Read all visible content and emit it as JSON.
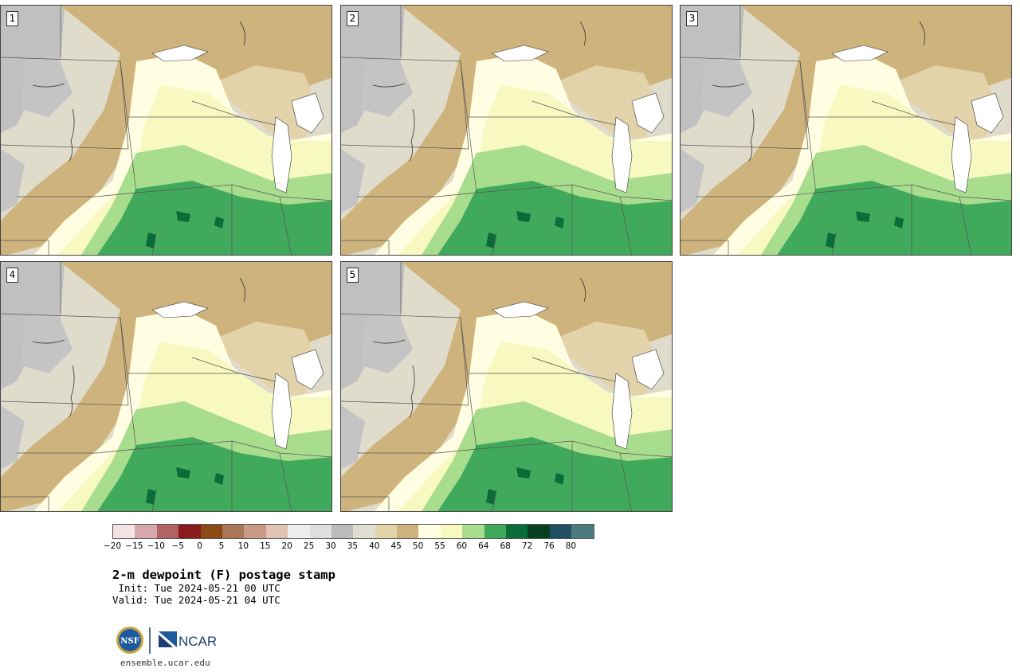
{
  "panels": [
    {
      "label": "1"
    },
    {
      "label": "2"
    },
    {
      "label": "3"
    },
    {
      "label": "4"
    },
    {
      "label": "5"
    }
  ],
  "colorbar": {
    "colors": [
      "#f2e4e4",
      "#d6a8ab",
      "#b26264",
      "#8b1a1f",
      "#8b4a16",
      "#aa7655",
      "#c99a83",
      "#e0c3b3",
      "#eeeeee",
      "#dedede",
      "#bbbbbb",
      "#e0ddd3",
      "#e2d3aa",
      "#cfb37c",
      "#fffde2",
      "#f7f9c0",
      "#a8dd8e",
      "#41a95c",
      "#0b6b39",
      "#063f22",
      "#1f5063",
      "#4b7b7c"
    ],
    "ticks": [
      "−20",
      "−15",
      "−10",
      "−5",
      "0",
      "5",
      "10",
      "15",
      "20",
      "25",
      "30",
      "35",
      "40",
      "45",
      "50",
      "55",
      "60",
      "64",
      "68",
      "72",
      "76",
      "80"
    ]
  },
  "title": "2-m dewpoint (F) postage stamp",
  "init": " Init: Tue 2024-05-21 00 UTC",
  "valid": "Valid: Tue 2024-05-21 04 UTC",
  "logos": {
    "left": "NSF",
    "right": "NCAR"
  },
  "url": "ensemble.ucar.edu"
}
